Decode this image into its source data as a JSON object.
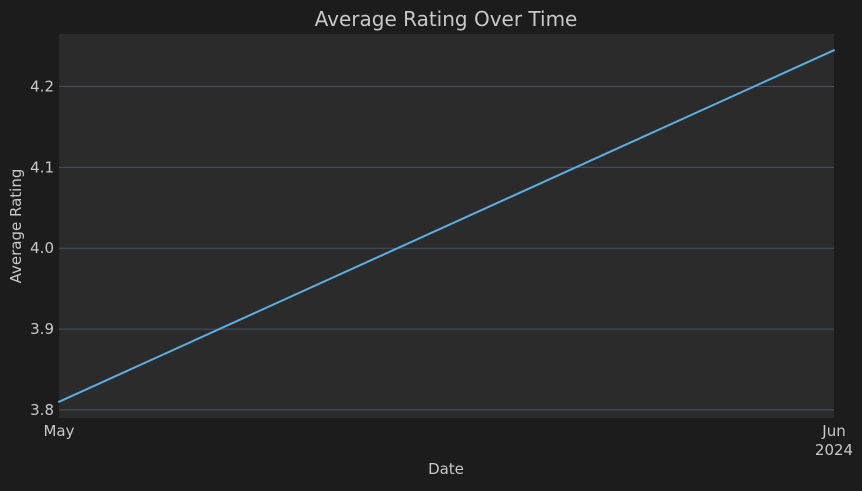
{
  "chart_data": {
    "type": "line",
    "title": "Average Rating Over Time",
    "xlabel": "Date",
    "ylabel": "Average Rating",
    "x_ticks": [
      {
        "date": "2024-05-01",
        "label": "May",
        "sublabel": ""
      },
      {
        "date": "2024-06-01",
        "label": "Jun",
        "sublabel": "2024"
      }
    ],
    "y_ticks": [
      3.8,
      3.9,
      4.0,
      4.1,
      4.2
    ],
    "xlim": [
      "2024-05-01",
      "2024-06-01"
    ],
    "ylim": [
      3.79,
      4.265
    ],
    "grid": "horizontal",
    "series": [
      {
        "color": "#5dade2",
        "points": [
          {
            "x": "2024-05-01",
            "y": 3.81
          },
          {
            "x": "2024-06-01",
            "y": 4.245
          }
        ]
      }
    ]
  },
  "colors": {
    "background": "#1c1c1c",
    "plot_background": "#2b2b2b",
    "grid": "#46506a",
    "text": "#c8c8c8"
  }
}
